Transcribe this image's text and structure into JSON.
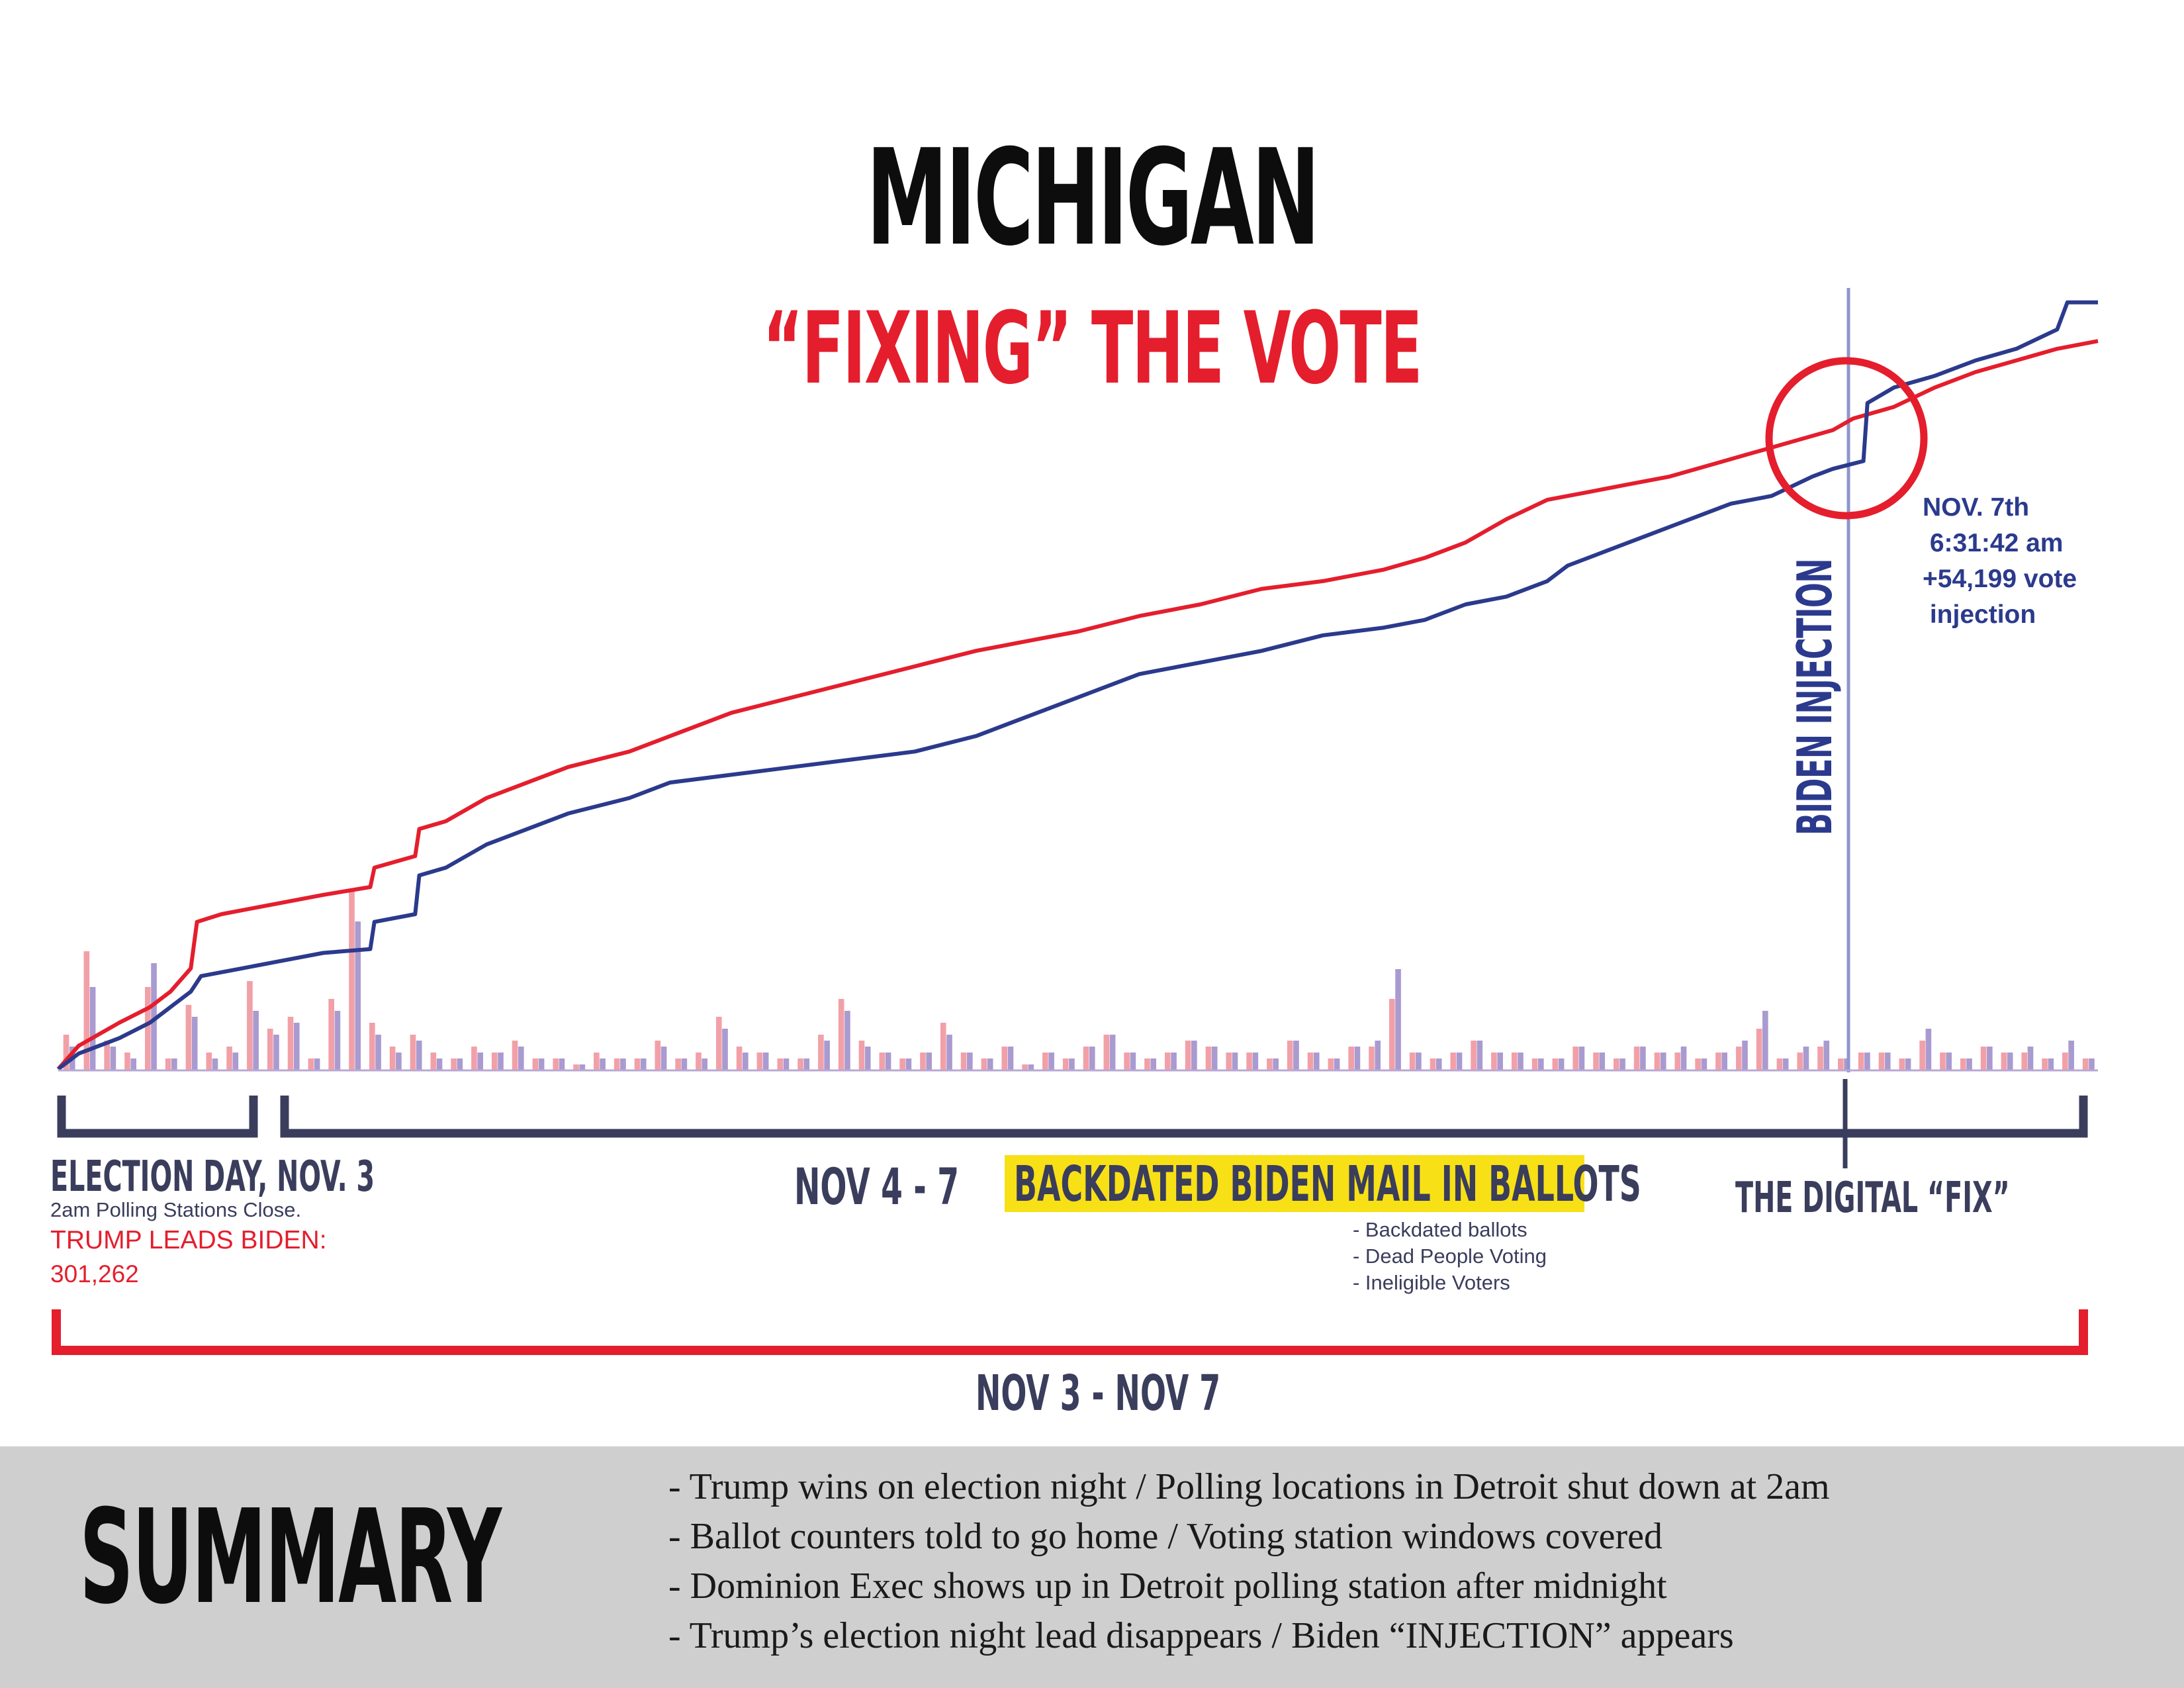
{
  "header": {
    "title": "MICHIGAN",
    "subtitle": "“FIXING” THE VOTE"
  },
  "annotations": {
    "biden_injection": "BIDEN INJECTION",
    "injection_note": "NOV. 7th\n 6:31:42 am\n+54,199 vote\n injection",
    "election_day": "ELECTION DAY, NOV. 3",
    "polling_close": "2am Polling Stations Close.",
    "trump_leads": "TRUMP LEADS BIDEN:",
    "trump_lead_value": "301,262",
    "nov_4_7": "NOV 4 - 7",
    "backdated_title": "BACKDATED BIDEN MAIL IN BALLOTS",
    "backdated_items": [
      "- Backdated ballots",
      "- Dead People Voting",
      "- Ineligible Voters"
    ],
    "digital_fix": "THE DIGITAL “FIX”",
    "nov_3_7": "NOV 3 - NOV 7"
  },
  "summary": {
    "heading": "SUMMARY",
    "items": [
      "- Trump wins on election night / Polling locations in Detroit shut down at 2am",
      "- Ballot counters told to go home / Voting station windows covered",
      "- Dominion Exec shows up in Detroit polling station after midnight",
      "- Trump’s election night lead disappears / Biden “INJECTION” appears"
    ]
  },
  "colors": {
    "trump": "#e41e2d",
    "biden": "#2b3a8c",
    "navy": "#3a3d5c",
    "highlight": "#f7e016",
    "summary_bg": "#cfcfcf"
  },
  "chart_data": {
    "type": "line",
    "xlabel": "",
    "ylabel": "",
    "x_range": [
      0,
      100
    ],
    "y_range": [
      0,
      100
    ],
    "grid": false,
    "series": [
      {
        "key": "trump",
        "color": "#e41e2d",
        "points": [
          [
            0,
            0
          ],
          [
            1,
            3
          ],
          [
            3,
            6
          ],
          [
            4.5,
            8
          ],
          [
            5.5,
            10
          ],
          [
            6.5,
            13
          ],
          [
            6.8,
            19
          ],
          [
            8,
            20
          ],
          [
            10,
            21
          ],
          [
            13,
            22.5
          ],
          [
            15.3,
            23.5
          ],
          [
            15.5,
            26
          ],
          [
            17.5,
            27.5
          ],
          [
            17.7,
            31
          ],
          [
            19,
            32
          ],
          [
            21,
            35
          ],
          [
            23,
            37
          ],
          [
            25,
            39
          ],
          [
            28,
            41
          ],
          [
            30,
            43
          ],
          [
            33,
            46
          ],
          [
            36,
            48
          ],
          [
            39,
            50
          ],
          [
            42,
            52
          ],
          [
            45,
            54
          ],
          [
            48,
            55.5
          ],
          [
            50,
            56.5
          ],
          [
            53,
            58.5
          ],
          [
            56,
            60
          ],
          [
            59,
            62
          ],
          [
            62,
            63
          ],
          [
            65,
            64.5
          ],
          [
            67,
            66
          ],
          [
            69,
            68
          ],
          [
            71,
            71
          ],
          [
            73,
            73.5
          ],
          [
            75,
            74.5
          ],
          [
            77,
            75.5
          ],
          [
            79,
            76.5
          ],
          [
            81,
            78
          ],
          [
            83,
            79.5
          ],
          [
            85,
            81
          ],
          [
            87,
            82.5
          ],
          [
            88,
            84
          ],
          [
            90,
            85.5
          ],
          [
            92,
            88
          ],
          [
            94,
            90
          ],
          [
            96,
            91.5
          ],
          [
            98,
            93
          ],
          [
            100,
            94
          ]
        ]
      },
      {
        "key": "biden",
        "color": "#2b3a8c",
        "points": [
          [
            0,
            0
          ],
          [
            1,
            2
          ],
          [
            3,
            4
          ],
          [
            4.5,
            6
          ],
          [
            5.5,
            8
          ],
          [
            6.5,
            10
          ],
          [
            7,
            12
          ],
          [
            9,
            13
          ],
          [
            11,
            14
          ],
          [
            13,
            15
          ],
          [
            15.3,
            15.5
          ],
          [
            15.5,
            19
          ],
          [
            17.5,
            20
          ],
          [
            17.7,
            25
          ],
          [
            19,
            26
          ],
          [
            21,
            29
          ],
          [
            23,
            31
          ],
          [
            25,
            33
          ],
          [
            28,
            35
          ],
          [
            30,
            37
          ],
          [
            33,
            38
          ],
          [
            36,
            39
          ],
          [
            39,
            40
          ],
          [
            42,
            41
          ],
          [
            45,
            43
          ],
          [
            48,
            46
          ],
          [
            50,
            48
          ],
          [
            53,
            51
          ],
          [
            56,
            52.5
          ],
          [
            59,
            54
          ],
          [
            62,
            56
          ],
          [
            65,
            57
          ],
          [
            67,
            58
          ],
          [
            69,
            60
          ],
          [
            71,
            61
          ],
          [
            73,
            63
          ],
          [
            74,
            65
          ],
          [
            76,
            67
          ],
          [
            78,
            69
          ],
          [
            80,
            71
          ],
          [
            82,
            73
          ],
          [
            84,
            74
          ],
          [
            86,
            76.5
          ],
          [
            87,
            77.5
          ],
          [
            88.5,
            78.5
          ],
          [
            88.7,
            86
          ],
          [
            90,
            88
          ],
          [
            92,
            89.5
          ],
          [
            94,
            91.5
          ],
          [
            96,
            93
          ],
          [
            98,
            95.5
          ],
          [
            98.5,
            99
          ],
          [
            100,
            99
          ]
        ]
      }
    ],
    "bars": {
      "note": "per-batch vote bars",
      "trump_values": [
        6,
        20,
        5,
        3,
        14,
        2,
        11,
        3,
        4,
        15,
        7,
        9,
        2,
        12,
        30,
        8,
        4,
        6,
        3,
        2,
        4,
        3,
        5,
        2,
        2,
        1,
        3,
        2,
        2,
        5,
        2,
        3,
        9,
        4,
        3,
        2,
        2,
        6,
        12,
        5,
        3,
        2,
        3,
        8,
        3,
        2,
        4,
        1,
        3,
        2,
        4,
        6,
        3,
        2,
        3,
        5,
        4,
        3,
        3,
        2,
        5,
        3,
        2,
        4,
        4,
        12,
        3,
        2,
        3,
        5,
        3,
        3,
        2,
        2,
        4,
        3,
        2,
        4,
        3,
        3,
        2,
        3,
        4,
        7,
        2,
        3,
        4,
        2,
        3,
        3,
        2,
        5,
        3,
        2,
        4,
        3,
        3,
        2,
        3,
        2
      ],
      "biden_values": [
        4,
        14,
        4,
        2,
        18,
        2,
        9,
        2,
        3,
        10,
        6,
        8,
        2,
        10,
        25,
        6,
        3,
        5,
        2,
        2,
        3,
        3,
        4,
        2,
        2,
        1,
        2,
        2,
        2,
        4,
        2,
        2,
        7,
        3,
        3,
        2,
        2,
        5,
        10,
        4,
        3,
        2,
        3,
        6,
        3,
        2,
        4,
        1,
        3,
        2,
        4,
        6,
        3,
        2,
        3,
        5,
        4,
        3,
        3,
        2,
        5,
        3,
        2,
        4,
        5,
        17,
        3,
        2,
        3,
        5,
        3,
        3,
        2,
        2,
        4,
        3,
        2,
        4,
        3,
        4,
        2,
        3,
        5,
        10,
        2,
        4,
        5,
        2,
        3,
        3,
        2,
        7,
        3,
        2,
        4,
        3,
        4,
        2,
        5,
        2
      ]
    }
  }
}
